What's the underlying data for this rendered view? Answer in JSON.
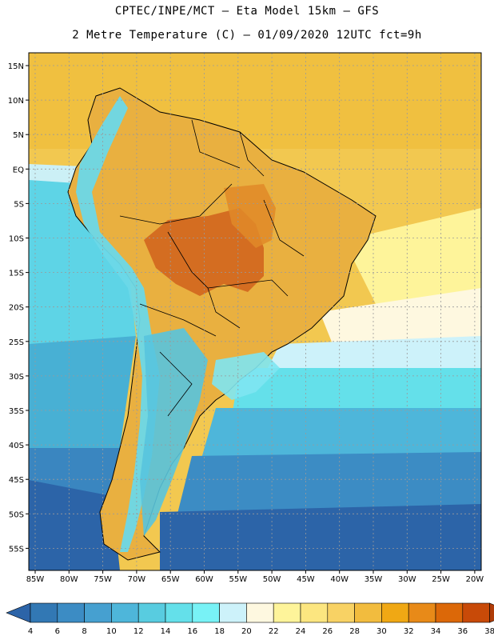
{
  "title": {
    "line1": "CPTEC/INPE/MCT –  Eta Model 15km – GFS",
    "line2": "2 Metre Temperature (C) – 01/09/2020 12UTC fct=9h"
  },
  "lat_labels": [
    "15N",
    "10N",
    "5N",
    "EQ",
    "5S",
    "10S",
    "15S",
    "20S",
    "25S",
    "30S",
    "35S",
    "40S",
    "45S",
    "50S",
    "55S"
  ],
  "lon_labels": [
    "85W",
    "80W",
    "75W",
    "70W",
    "65W",
    "60W",
    "55W",
    "50W",
    "45W",
    "40W",
    "35W",
    "30W",
    "25W",
    "20W"
  ],
  "colorbar": {
    "values": [
      "4",
      "6",
      "8",
      "10",
      "12",
      "14",
      "16",
      "18",
      "20",
      "22",
      "24",
      "26",
      "28",
      "30",
      "32",
      "34",
      "36",
      "38"
    ],
    "colors": [
      "#2c64a8",
      "#3278b4",
      "#3c8cc4",
      "#46a0d0",
      "#4eb6da",
      "#58cce0",
      "#64e0ea",
      "#78f2f6",
      "#cdf2fa",
      "#fef8e0",
      "#fef49a",
      "#fce680",
      "#f8d264",
      "#f2bc3e",
      "#f0a814",
      "#e88a18",
      "#dc6808",
      "#c84a08",
      "#b03c08"
    ]
  }
}
